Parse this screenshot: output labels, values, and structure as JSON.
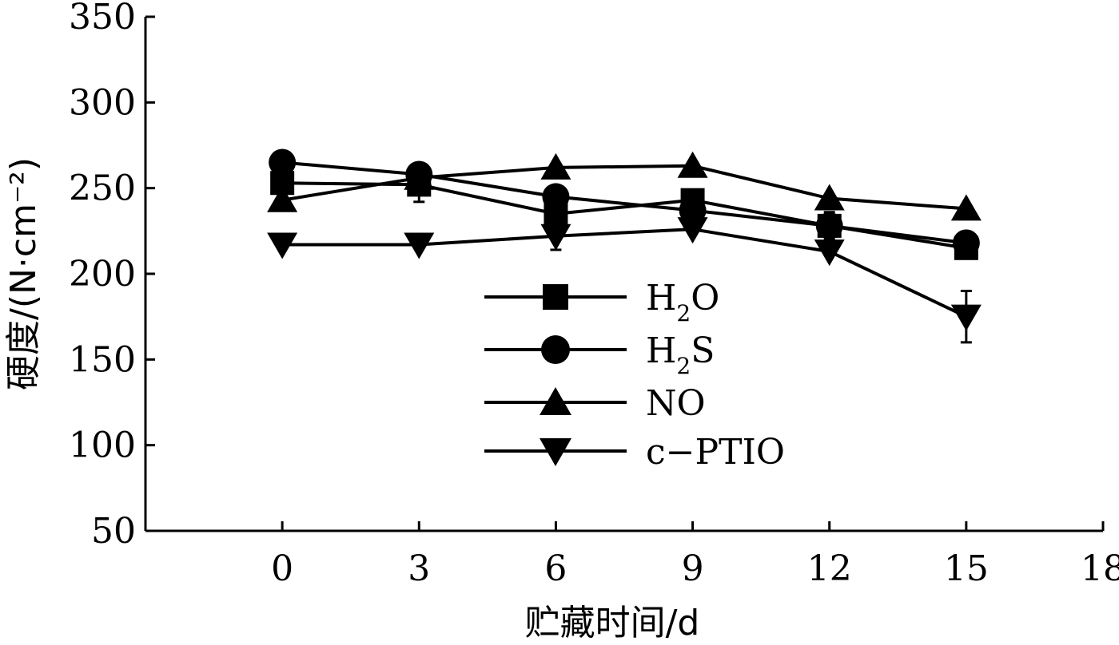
{
  "chart_data": {
    "type": "line",
    "xlabel": "贮藏时间/d",
    "ylabel": "硬度/(N·cm⁻²)",
    "xlim": [
      -3,
      18
    ],
    "ylim": [
      50,
      350
    ],
    "xticks": [
      0,
      3,
      6,
      9,
      12,
      15,
      18
    ],
    "yticks": [
      50,
      100,
      150,
      200,
      250,
      300,
      350
    ],
    "grid": false,
    "legend": "center",
    "x": [
      0,
      3,
      6,
      9,
      12,
      15
    ],
    "series": [
      {
        "name": "H₂O",
        "label_main": "H",
        "label_sub": "2",
        "label_tail": "O",
        "marker": "square",
        "values": [
          253,
          252,
          235,
          243,
          228,
          215
        ],
        "errors": [
          0,
          10,
          0,
          0,
          8,
          0
        ]
      },
      {
        "name": "H₂S",
        "label_main": "H",
        "label_sub": "2",
        "label_tail": "S",
        "marker": "circle",
        "values": [
          265,
          258,
          245,
          237,
          228,
          218
        ],
        "errors": [
          0,
          0,
          0,
          0,
          0,
          0
        ]
      },
      {
        "name": "NO",
        "label_main": "NO",
        "label_sub": "",
        "label_tail": "",
        "marker": "triangle-up",
        "values": [
          243,
          256,
          262,
          263,
          244,
          238
        ],
        "errors": [
          0,
          0,
          0,
          0,
          0,
          0
        ]
      },
      {
        "name": "c−PTIO",
        "label_main": "c−PTIO",
        "label_sub": "",
        "label_tail": "",
        "marker": "triangle-down",
        "values": [
          217,
          217,
          222,
          226,
          213,
          175
        ],
        "errors": [
          0,
          0,
          8,
          0,
          0,
          15
        ]
      }
    ]
  }
}
